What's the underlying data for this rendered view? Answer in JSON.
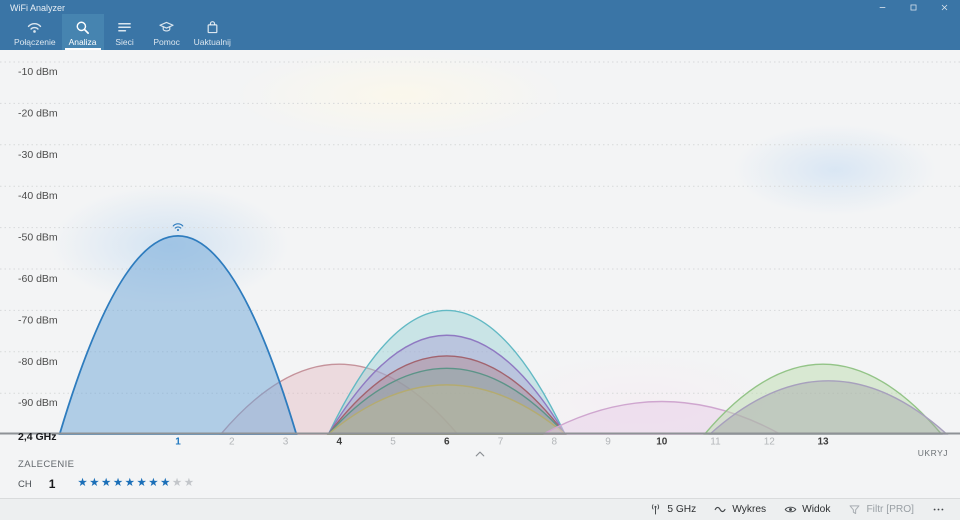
{
  "window": {
    "title": "WiFi Analyzer",
    "controls": [
      {
        "name": "minimize",
        "icon": "minimize-icon"
      },
      {
        "name": "maximize",
        "icon": "maximize-icon"
      },
      {
        "name": "close",
        "icon": "close-icon"
      }
    ]
  },
  "tabs": [
    {
      "id": "polaczenie",
      "label": "Połączenie",
      "icon": "wifi-icon",
      "selected": false
    },
    {
      "id": "analiza",
      "label": "Analiza",
      "icon": "search-icon",
      "selected": true
    },
    {
      "id": "sieci",
      "label": "Sieci",
      "icon": "list-icon",
      "selected": false
    },
    {
      "id": "pomoc",
      "label": "Pomoc",
      "icon": "graduation-cap-icon",
      "selected": false
    },
    {
      "id": "uaktualnij",
      "label": "Uaktualnij",
      "icon": "shopping-bag-icon",
      "selected": false
    }
  ],
  "chart_data": {
    "type": "area",
    "title": "WiFi channel signal analysis (2.4 GHz band)",
    "band_label": "2,4 GHz",
    "y_unit": "dBm",
    "y_ticks": [
      -10,
      -20,
      -30,
      -40,
      -50,
      -60,
      -70,
      -80,
      -90
    ],
    "ylim": [
      -100,
      -10
    ],
    "channels": [
      1,
      2,
      3,
      4,
      5,
      6,
      7,
      8,
      9,
      10,
      11,
      12,
      13
    ],
    "connected_channel": 1,
    "occupied_channels": [
      4,
      6,
      10,
      13
    ],
    "grid": "dotted horizontal",
    "legend": "none",
    "curve_halfwidth_channels": 2.2,
    "networks": [
      {
        "channel": 4,
        "signal_dbm": -83,
        "color_stroke": "#c5939b",
        "color_fill": "rgba(226,180,188,0.40)",
        "connected": false
      },
      {
        "channel": 6,
        "signal_dbm": -70,
        "color_stroke": "#62b9c4",
        "color_fill": "rgba(150,208,213,0.45)",
        "connected": false
      },
      {
        "channel": 6,
        "signal_dbm": -76,
        "color_stroke": "#8f79c2",
        "color_fill": "rgba(165,150,210,0.40)",
        "connected": false
      },
      {
        "channel": 6,
        "signal_dbm": -81,
        "color_stroke": "#a2636e",
        "color_fill": "rgba(175,120,130,0.38)",
        "connected": false
      },
      {
        "channel": 6,
        "signal_dbm": -84,
        "color_stroke": "#5c9488",
        "color_fill": "rgba(130,170,160,0.38)",
        "connected": false
      },
      {
        "channel": 6,
        "signal_dbm": -88,
        "color_stroke": "#b4ab70",
        "color_fill": "rgba(200,195,140,0.32)",
        "connected": false
      },
      {
        "channel": 10,
        "signal_dbm": -92,
        "color_stroke": "#cfa6cf",
        "color_fill": "rgba(231,205,231,0.50)",
        "connected": false
      },
      {
        "channel": 13,
        "signal_dbm": -83,
        "color_stroke": "#93c487",
        "color_fill": "rgba(190,220,175,0.50)",
        "connected": false
      },
      {
        "channel": 13.1,
        "signal_dbm": -87,
        "color_stroke": "#a7a0bd",
        "color_fill": "rgba(160,160,165,0.42)",
        "connected": false
      },
      {
        "channel": 1,
        "signal_dbm": -52,
        "color_stroke": "#2e7cbe",
        "color_fill": "rgba(110,165,215,0.50)",
        "connected": true
      }
    ]
  },
  "chart_overlay": {
    "hide_label": "UKRYJ",
    "expander_icon": "chevron-up-icon"
  },
  "recommendation": {
    "title": "ZALECENIE",
    "channel_label": "CH",
    "channel_value": "1",
    "stars_filled": 8,
    "stars_total": 10,
    "star_color": "#1b6fb8",
    "star_empty_color": "#c3c6ca"
  },
  "statusbar": {
    "items": [
      {
        "id": "band-5ghz",
        "icon": "antenna-icon",
        "label": "5 GHz",
        "disabled": false
      },
      {
        "id": "wykres",
        "icon": "wave-icon",
        "label": "Wykres",
        "disabled": false
      },
      {
        "id": "widok",
        "icon": "eye-icon",
        "label": "Widok",
        "disabled": false
      },
      {
        "id": "filtr-pro",
        "icon": "filter-icon",
        "label": "Filtr [PRO]",
        "disabled": true
      },
      {
        "id": "more",
        "icon": "more-icon",
        "label": "",
        "disabled": false
      }
    ]
  },
  "colors": {
    "header_bg": "#3a75a6",
    "selected_tab_bg": "#4684b0",
    "accent_blue": "#1b6fb8",
    "axis_line": "#8e9296",
    "gridline": "#d7d9da",
    "tick_inactive": "#b3b6b9",
    "tick_occupied": "#3d3d3d",
    "tick_connected": "#1f78c0"
  }
}
